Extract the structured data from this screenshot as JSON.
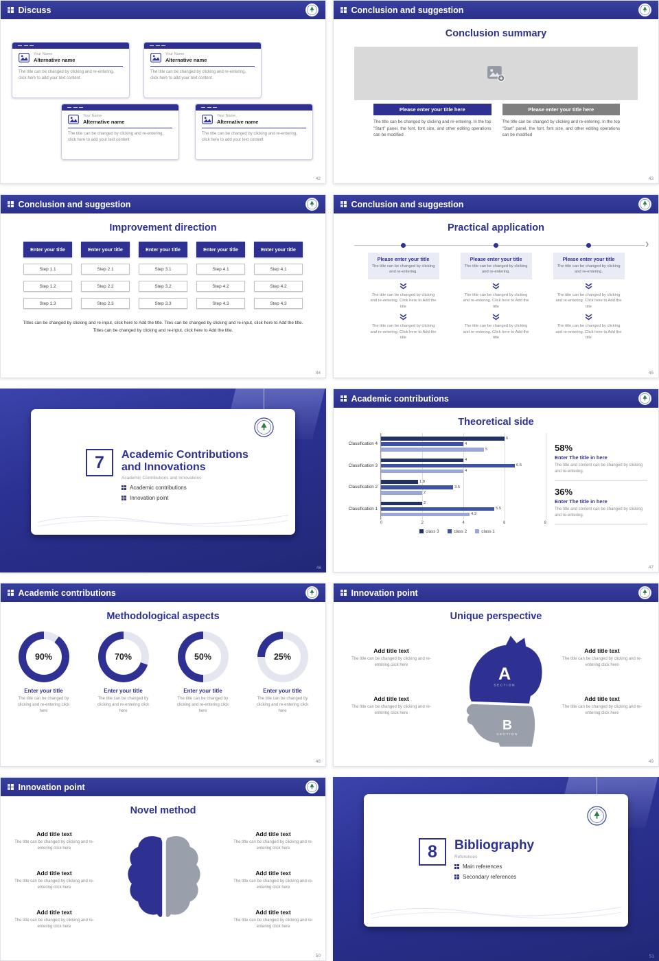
{
  "accent": "#2e3192",
  "chart_data": [
    {
      "type": "bar",
      "orientation": "horizontal",
      "title": "Theoretical side",
      "categories": [
        "Classification 1",
        "Classification 2",
        "Classification 3",
        "Classification 4"
      ],
      "series": [
        {
          "name": "class 3",
          "color": "#233266",
          "values": [
            2,
            1.8,
            4,
            6
          ]
        },
        {
          "name": "class 2",
          "color": "#3d51a5",
          "values": [
            5.5,
            3.5,
            6.5,
            4
          ]
        },
        {
          "name": "class 1",
          "color": "#9aa6d8",
          "values": [
            4.3,
            2,
            4,
            5
          ]
        }
      ],
      "xlim": [
        0,
        8
      ],
      "xticks": [
        0,
        2,
        4,
        6,
        8
      ],
      "legend": [
        "class 3",
        "class 2",
        "class 1"
      ],
      "legend_position": "bottom",
      "gridlines": true
    },
    {
      "type": "pie",
      "subtype": "donut",
      "title": "Methodological aspects",
      "labels": [
        "90%",
        "70%",
        "50%",
        "25%"
      ],
      "values": [
        90,
        70,
        50,
        25
      ],
      "accent": "#2e3192",
      "track": "#e4e6ef"
    }
  ],
  "s42": {
    "header": "Discuss",
    "page": "42",
    "cards": [
      {
        "name": "Your Name",
        "alt": "Alternative name",
        "body": "The title can be changed by clicking and re-entering, click here to add your text content"
      },
      {
        "name": "Your Name",
        "alt": "Alternative name",
        "body": "The title can be changed by clicking and re-entering, click here to add your text content"
      },
      {
        "name": "Your Name",
        "alt": "Alternative name",
        "body": "The title can be changed by clicking and re-entering, click here to add your text content"
      },
      {
        "name": "Your Name",
        "alt": "Alternative name",
        "body": "The title can be changed by clicking and re-entering, click here to add your text content"
      }
    ]
  },
  "s43": {
    "header": "Conclusion and suggestion",
    "title": "Conclusion summary",
    "page": "43",
    "left_button": "Please enter your title here",
    "right_button": "Please enter your title here",
    "left_text": "The title can be changed by clicking and re-entering. In the top \"Start\" panel, the font, font size, and other editing operations can be modified",
    "right_text": "The title can be changed by clicking and re-entering. In the top \"Start\" panel, the font, font size, and other editing operations can be modified"
  },
  "s44": {
    "header": "Conclusion and suggestion",
    "title": "Improvement direction",
    "page": "44",
    "columns": [
      {
        "title": "Enter your title",
        "steps": [
          "Step 1.1",
          "Step 1.2",
          "Step 1.3"
        ]
      },
      {
        "title": "Enter your title",
        "steps": [
          "Step 2.1",
          "Step 2.2",
          "Step 2.3"
        ]
      },
      {
        "title": "Enter your title",
        "steps": [
          "Step 3.1",
          "Step 3.2",
          "Step 3.3"
        ]
      },
      {
        "title": "Enter your title",
        "steps": [
          "Step 4.1",
          "Step 4.2",
          "Step 4.3"
        ]
      },
      {
        "title": "Enter your title",
        "steps": [
          "Step 4.1",
          "Step 4.2",
          "Step 4.3"
        ]
      }
    ],
    "caption": "Titles can be changed by clicking and re-input, click here to Add the title. Tiles can be changed by clicking and re-input, click here to Add the title. Titles can be changed by clicking and re-input, click here to Add the title."
  },
  "s45": {
    "header": "Conclusion and suggestion",
    "title": "Practical application",
    "page": "45",
    "box_title": "Please enter your title",
    "box_sub": "The title can be changed by clicking and re-entering.",
    "step_text": "The title can be changed by clicking and re-entering. Click here to Add the title"
  },
  "s46": {
    "number": "7",
    "title": "Academic Contributions and Innovations",
    "subtitle": "Academic Contributions and Innovations",
    "bullet1": "Academic contributions",
    "bullet2": "Innovation point",
    "page": "46"
  },
  "s47": {
    "header": "Academic contributions",
    "title": "Theoretical side",
    "page": "47",
    "stat1": {
      "value": "58%",
      "title": "Enter The title in here",
      "desc": "The title and content can be changed by clicking and re-entering."
    },
    "stat2": {
      "value": "36%",
      "title": "Enter The title in here",
      "desc": "The title and content can be changed by clicking and re-entering."
    }
  },
  "s48": {
    "header": "Academic contributions",
    "title": "Methodological aspects",
    "page": "48",
    "item_title": "Enter your title",
    "item_desc": "The title can be changed by clicking and re-entering click here"
  },
  "s49": {
    "header": "Innovation point",
    "title": "Unique perspective",
    "page": "49",
    "item_title": "Add title text",
    "item_desc": "The title can be changed by clicking and re-entering click here",
    "section_a": "A",
    "section_b": "B",
    "section_label": "SECTION"
  },
  "s50": {
    "header": "Innovation point",
    "title": "Novel method",
    "page": "50",
    "item_title": "Add title text",
    "item_desc": "The title can be changed by clicking and re-entering click here"
  },
  "s51": {
    "number": "8",
    "title": "Bibliography",
    "subtitle": "References",
    "bullet1": "Main references",
    "bullet2": "Secondary references",
    "page": "51"
  }
}
